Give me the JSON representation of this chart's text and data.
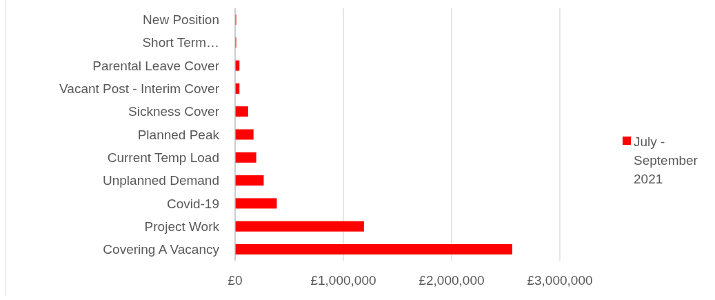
{
  "chart_data": {
    "type": "bar",
    "orientation": "horizontal",
    "categories": [
      "New Position",
      "Short Term…",
      "Parental Leave Cover",
      "Vacant Post - Interim Cover",
      "Sickness Cover",
      "Planned Peak",
      "Current Temp Load",
      "Unplanned Demand",
      "Covid-19",
      "Project Work",
      "Covering A Vacancy"
    ],
    "series": [
      {
        "name": "July - September 2021",
        "color": "#ff0000",
        "values": [
          10000,
          10000,
          40000,
          40000,
          120000,
          170000,
          195000,
          264000,
          385000,
          1190000,
          2560000
        ]
      }
    ],
    "xlim": [
      0,
      3000000
    ],
    "xticks": [
      {
        "value": 0,
        "label": "£0"
      },
      {
        "value": 1000000,
        "label": "£1,000,000"
      },
      {
        "value": 2000000,
        "label": "£2,000,000"
      },
      {
        "value": 3000000,
        "label": "£3,000,000"
      }
    ],
    "grid": "x",
    "legend": "right"
  }
}
